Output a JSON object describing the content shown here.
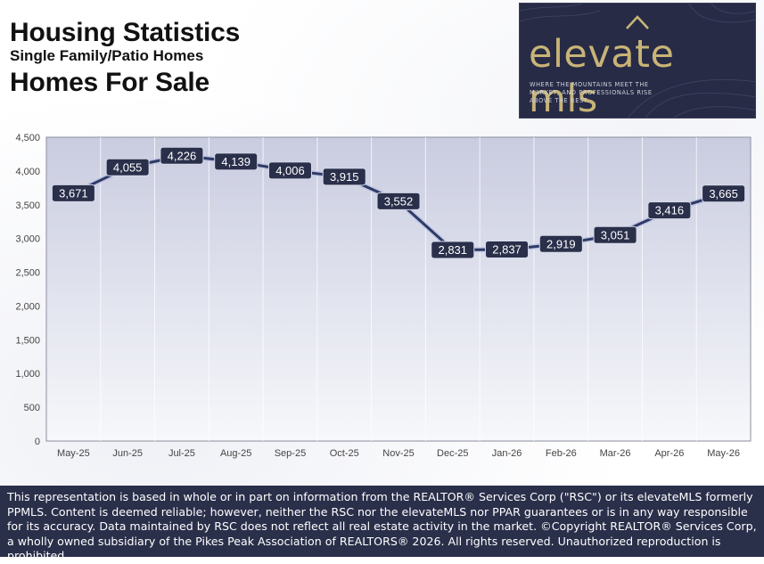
{
  "header": {
    "title": "Housing Statistics",
    "subtitle": "Single Family/Patio Homes",
    "metric": "Homes For Sale"
  },
  "logo": {
    "wordmark": "elevate mls",
    "tagline": "Where the mountains meet the market, and professionals rise above the rest."
  },
  "footer": {
    "disclaimer": "This representation is based in whole or in part on information from the REALTOR® Services Corp (\"RSC\") or its elevateMLS formerly PPMLS. Content is deemed reliable; however, neither the RSC nor the elevateMLS nor PPAR guarantees or is in any way responsible for its accuracy. Data maintained by RSC does not reflect all real estate activity in the market.  ©Copyright REALTOR® Services Corp, a wholly owned subsidiary of the Pikes Peak Association of REALTORS® 2026. All rights reserved. Unauthorized reproduction is prohibited."
  },
  "colors": {
    "line": "#2e3a66",
    "label_bg": "#2a2f4a",
    "plot_top": "#c9cce0",
    "plot_bottom": "#f7f8fb",
    "footer_bg": "#2a2f4a",
    "logo_bg": "#272b46",
    "logo_gold": "#c8b476"
  },
  "chart_data": {
    "type": "line",
    "categories": [
      "May-25",
      "Jun-25",
      "Jul-25",
      "Aug-25",
      "Sep-25",
      "Oct-25",
      "Nov-25",
      "Dec-25",
      "Jan-26",
      "Feb-26",
      "Mar-26",
      "Apr-26",
      "May-26"
    ],
    "values": [
      3671,
      4055,
      4226,
      4139,
      4006,
      3915,
      3552,
      2831,
      2837,
      2919,
      3051,
      3416,
      3665
    ],
    "data_labels": [
      "3,671",
      "4,055",
      "4,226",
      "4,139",
      "4,006",
      "3,915",
      "3,552",
      "2,831",
      "2,837",
      "2,919",
      "3,051",
      "3,416",
      "3,665"
    ],
    "y_ticks": [
      0,
      500,
      1000,
      1500,
      2000,
      2500,
      3000,
      3500,
      4000,
      4500
    ],
    "y_tick_labels": [
      "0",
      "500",
      "1,000",
      "1,500",
      "2,000",
      "2,500",
      "3,000",
      "3,500",
      "4,000",
      "4,500"
    ],
    "ylim": [
      0,
      4500
    ],
    "title": "",
    "xlabel": "",
    "ylabel": "",
    "grid": "vertical",
    "legend": "none"
  }
}
